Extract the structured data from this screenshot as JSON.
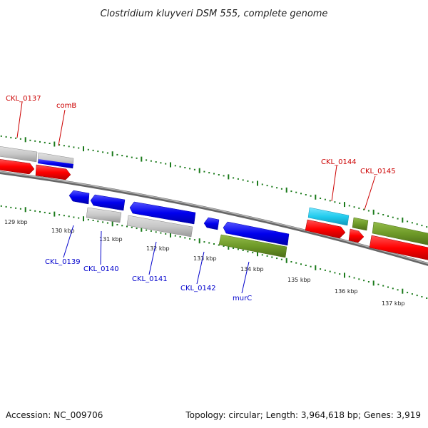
{
  "title": "Clostridium kluyveri DSM 555, complete genome",
  "footer": {
    "accession": "Accession: NC_009706",
    "topology": "Topology: circular; Length: 3,964,618 bp; Genes: 3,919"
  },
  "colors": {
    "label_top": "#cc0000",
    "label_bottom": "#0000cc",
    "red": "#ff0000",
    "blue": "#0000ee",
    "gray": "#c8c8c8",
    "cyan": "#22ccee",
    "olive": "#6e9a28",
    "tick": "#1a7a1a",
    "backbone": "#888888"
  },
  "kbp_labels": [
    "129 kbp",
    "130 kbp",
    "131 kbp",
    "132 kbp",
    "133 kbp",
    "134 kbp",
    "135 kbp",
    "136 kbp",
    "137 kbp"
  ],
  "gene_labels_top": [
    "CKL_0137",
    "comB",
    "CKL_0144",
    "CKL_0145"
  ],
  "gene_labels_bottom": [
    "CKL_0139",
    "CKL_0140",
    "CKL_0141",
    "CKL_0142",
    "murC"
  ]
}
